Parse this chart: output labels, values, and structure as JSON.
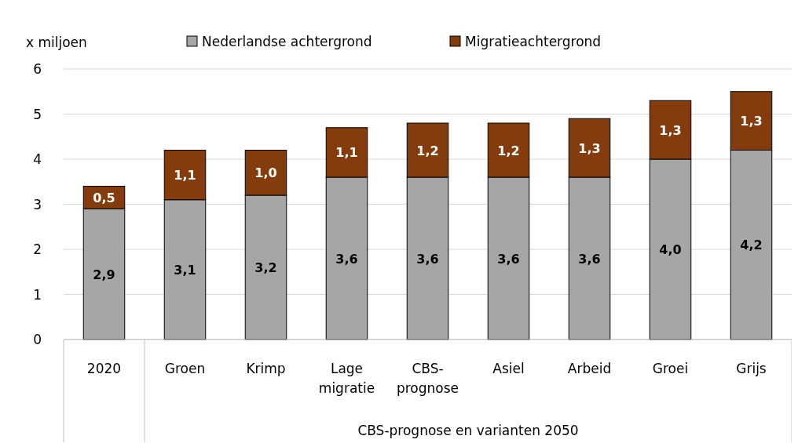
{
  "chart_data": {
    "type": "bar",
    "stacked": true,
    "ylabel": "x miljoen",
    "xlabel": "CBS-prognose en varianten 2050",
    "categories": [
      "2020",
      "Groen",
      "Krimp",
      "Lage migratie",
      "CBS-prognose",
      "Asiel",
      "Arbeid",
      "Groei",
      "Grijs"
    ],
    "series": [
      {
        "name": "Nederlandse achtergrond",
        "color": "#a6a6a6",
        "values": [
          2.9,
          3.1,
          3.2,
          3.6,
          3.6,
          3.6,
          3.6,
          4.0,
          4.2
        ],
        "value_labels": [
          "2,9",
          "3,1",
          "3,2",
          "3,6",
          "3,6",
          "3,6",
          "3,6",
          "4,0",
          "4,2"
        ]
      },
      {
        "name": "Migratieachtergrond",
        "color": "#843c0c",
        "values": [
          0.5,
          1.1,
          1.0,
          1.1,
          1.2,
          1.2,
          1.3,
          1.3,
          1.3
        ],
        "value_labels": [
          "0,5",
          "1,1",
          "1,0",
          "1,1",
          "1,2",
          "1,2",
          "1,3",
          "1,3",
          "1,3"
        ]
      }
    ],
    "ylim": [
      0,
      6
    ],
    "yticks": [
      0,
      1,
      2,
      3,
      4,
      5,
      6
    ],
    "grid": "y",
    "legend": "top"
  }
}
